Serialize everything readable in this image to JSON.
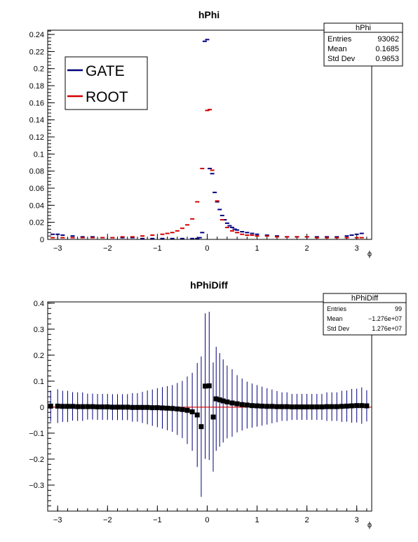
{
  "chart_data": [
    {
      "type": "scatter",
      "title": "hPhi",
      "xlabel": "ϕ",
      "ylabel": "",
      "xlim": [
        -3.2,
        3.3
      ],
      "ylim": [
        0,
        0.245
      ],
      "xticks": [
        -3,
        -2,
        -1,
        0,
        1,
        2,
        3
      ],
      "xtick_labels": [
        "−3",
        "−2",
        "−1",
        "0",
        "1",
        "2",
        "3"
      ],
      "yticks": [
        0,
        0.02,
        0.04,
        0.06,
        0.08,
        0.1,
        0.12,
        0.14,
        0.16,
        0.18,
        0.2,
        0.22,
        0.24
      ],
      "ytick_labels": [
        "0",
        "0.02",
        "0.04",
        "0.06",
        "0.08",
        "0.1",
        "0.12",
        "0.14",
        "0.16",
        "0.18",
        "0.2",
        "0.22",
        "0.24"
      ],
      "legend_placement": "top-left",
      "stats": {
        "title": "hPhi",
        "rows": [
          {
            "label": "Entries",
            "value": "93062"
          },
          {
            "label": "Mean",
            "value": "0.1685"
          },
          {
            "label": "Std Dev",
            "value": "0.9653"
          }
        ]
      },
      "series": [
        {
          "name": "GATE",
          "color": "#00007d",
          "x": [
            -3.1,
            -3.0,
            -2.9,
            -2.7,
            -2.5,
            -2.3,
            -2.1,
            -1.9,
            -1.7,
            -1.5,
            -1.3,
            -1.1,
            -0.9,
            -0.7,
            -0.5,
            -0.3,
            -0.2,
            -0.15,
            -0.1,
            -0.05,
            0.0,
            0.05,
            0.1,
            0.15,
            0.2,
            0.25,
            0.3,
            0.35,
            0.4,
            0.45,
            0.5,
            0.55,
            0.6,
            0.7,
            0.8,
            0.9,
            1.0,
            1.2,
            1.4,
            1.6,
            1.8,
            2.0,
            2.2,
            2.4,
            2.6,
            2.8,
            2.9,
            3.0,
            3.1
          ],
          "y": [
            0.006,
            0.006,
            0.005,
            0.004,
            0.003,
            0.003,
            0.002,
            0.002,
            0.002,
            0.002,
            0.001,
            0.001,
            0.001,
            0.001,
            0.001,
            0.001,
            0.001,
            0.002,
            0.008,
            0.232,
            0.234,
            0.083,
            0.077,
            0.055,
            0.044,
            0.035,
            0.028,
            0.023,
            0.019,
            0.016,
            0.014,
            0.012,
            0.011,
            0.009,
            0.008,
            0.007,
            0.006,
            0.005,
            0.004,
            0.003,
            0.003,
            0.003,
            0.003,
            0.003,
            0.003,
            0.004,
            0.005,
            0.006,
            0.007
          ]
        },
        {
          "name": "ROOT",
          "color": "#d40000",
          "x": [
            -3.1,
            -2.9,
            -2.7,
            -2.5,
            -2.3,
            -2.1,
            -1.9,
            -1.7,
            -1.5,
            -1.3,
            -1.1,
            -0.9,
            -0.8,
            -0.7,
            -0.6,
            -0.5,
            -0.4,
            -0.3,
            -0.2,
            -0.1,
            0.0,
            0.05,
            0.1,
            0.2,
            0.3,
            0.4,
            0.5,
            0.6,
            0.7,
            0.8,
            0.9,
            1.0,
            1.2,
            1.4,
            1.6,
            1.8,
            2.0,
            2.2,
            2.4,
            2.6,
            2.8,
            3.0,
            3.1
          ],
          "y": [
            0.002,
            0.002,
            0.002,
            0.002,
            0.002,
            0.002,
            0.002,
            0.003,
            0.003,
            0.004,
            0.005,
            0.006,
            0.007,
            0.008,
            0.01,
            0.013,
            0.017,
            0.024,
            0.044,
            0.083,
            0.151,
            0.152,
            0.081,
            0.045,
            0.023,
            0.014,
            0.01,
            0.008,
            0.006,
            0.005,
            0.005,
            0.004,
            0.004,
            0.003,
            0.003,
            0.003,
            0.003,
            0.002,
            0.002,
            0.002,
            0.002,
            0.002,
            0.002
          ]
        }
      ]
    },
    {
      "type": "scatter",
      "title": "hPhiDiff",
      "xlabel": "ϕ",
      "ylabel": "",
      "xlim": [
        -3.2,
        3.3
      ],
      "ylim": [
        -0.4,
        0.405
      ],
      "xticks": [
        -3,
        -2,
        -1,
        0,
        1,
        2,
        3
      ],
      "xtick_labels": [
        "−3",
        "−2",
        "−1",
        "0",
        "1",
        "2",
        "3"
      ],
      "yticks": [
        -0.3,
        -0.2,
        -0.1,
        0,
        0.1,
        0.2,
        0.3,
        0.4
      ],
      "ytick_labels": [
        "−0.3",
        "−0.2",
        "−0.1",
        "0",
        "0.1",
        "0.2",
        "0.3",
        "0.4"
      ],
      "stats": {
        "title": "hPhiDiff",
        "rows": [
          {
            "label": "Entries",
            "value": "99"
          },
          {
            "label": "Mean",
            "value": "−1.276e+07"
          },
          {
            "label": "Std Dev",
            "value": "1.276e+07"
          }
        ]
      },
      "reference_line": {
        "y": 0,
        "color": "#d40000"
      },
      "marker_color": "#000000",
      "error_color": "#00007d",
      "points": [
        {
          "x": -3.14,
          "y": 0.004,
          "err": 0.06
        },
        {
          "x": -3.0,
          "y": 0.004,
          "err": 0.065
        },
        {
          "x": -2.9,
          "y": 0.003,
          "err": 0.06
        },
        {
          "x": -2.8,
          "y": 0.003,
          "err": 0.06
        },
        {
          "x": -2.7,
          "y": 0.003,
          "err": 0.055
        },
        {
          "x": -2.6,
          "y": 0.002,
          "err": 0.055
        },
        {
          "x": -2.5,
          "y": 0.002,
          "err": 0.055
        },
        {
          "x": -2.4,
          "y": 0.002,
          "err": 0.05
        },
        {
          "x": -2.3,
          "y": 0.002,
          "err": 0.05
        },
        {
          "x": -2.2,
          "y": 0.001,
          "err": 0.05
        },
        {
          "x": -2.1,
          "y": 0.001,
          "err": 0.05
        },
        {
          "x": -2.0,
          "y": 0.001,
          "err": 0.05
        },
        {
          "x": -1.9,
          "y": 0.0,
          "err": 0.05
        },
        {
          "x": -1.8,
          "y": 0.0,
          "err": 0.05
        },
        {
          "x": -1.7,
          "y": 0.0,
          "err": 0.05
        },
        {
          "x": -1.6,
          "y": 0.0,
          "err": 0.05
        },
        {
          "x": -1.5,
          "y": -0.001,
          "err": 0.055
        },
        {
          "x": -1.4,
          "y": -0.001,
          "err": 0.055
        },
        {
          "x": -1.3,
          "y": -0.001,
          "err": 0.06
        },
        {
          "x": -1.2,
          "y": -0.001,
          "err": 0.065
        },
        {
          "x": -1.1,
          "y": -0.002,
          "err": 0.07
        },
        {
          "x": -1.0,
          "y": -0.002,
          "err": 0.075
        },
        {
          "x": -0.9,
          "y": -0.003,
          "err": 0.08
        },
        {
          "x": -0.8,
          "y": -0.004,
          "err": 0.085
        },
        {
          "x": -0.7,
          "y": -0.005,
          "err": 0.09
        },
        {
          "x": -0.6,
          "y": -0.007,
          "err": 0.1
        },
        {
          "x": -0.5,
          "y": -0.009,
          "err": 0.11
        },
        {
          "x": -0.4,
          "y": -0.012,
          "err": 0.13
        },
        {
          "x": -0.3,
          "y": -0.018,
          "err": 0.15
        },
        {
          "x": -0.2,
          "y": -0.03,
          "err": 0.2
        },
        {
          "x": -0.12,
          "y": -0.075,
          "err": 0.27
        },
        {
          "x": -0.04,
          "y": 0.081,
          "err": 0.28
        },
        {
          "x": 0.04,
          "y": 0.082,
          "err": 0.285
        },
        {
          "x": 0.12,
          "y": -0.038,
          "err": 0.21
        },
        {
          "x": 0.18,
          "y": 0.032,
          "err": 0.2
        },
        {
          "x": 0.25,
          "y": 0.028,
          "err": 0.18
        },
        {
          "x": 0.32,
          "y": 0.024,
          "err": 0.16
        },
        {
          "x": 0.4,
          "y": 0.02,
          "err": 0.14
        },
        {
          "x": 0.5,
          "y": 0.016,
          "err": 0.13
        },
        {
          "x": 0.6,
          "y": 0.013,
          "err": 0.11
        },
        {
          "x": 0.7,
          "y": 0.01,
          "err": 0.1
        },
        {
          "x": 0.8,
          "y": 0.008,
          "err": 0.09
        },
        {
          "x": 0.9,
          "y": 0.006,
          "err": 0.085
        },
        {
          "x": 1.0,
          "y": 0.005,
          "err": 0.08
        },
        {
          "x": 1.1,
          "y": 0.004,
          "err": 0.075
        },
        {
          "x": 1.2,
          "y": 0.003,
          "err": 0.07
        },
        {
          "x": 1.3,
          "y": 0.003,
          "err": 0.065
        },
        {
          "x": 1.4,
          "y": 0.002,
          "err": 0.06
        },
        {
          "x": 1.5,
          "y": 0.002,
          "err": 0.055
        },
        {
          "x": 1.6,
          "y": 0.002,
          "err": 0.055
        },
        {
          "x": 1.7,
          "y": 0.001,
          "err": 0.05
        },
        {
          "x": 1.8,
          "y": 0.001,
          "err": 0.05
        },
        {
          "x": 1.9,
          "y": 0.001,
          "err": 0.05
        },
        {
          "x": 2.0,
          "y": 0.001,
          "err": 0.05
        },
        {
          "x": 2.1,
          "y": 0.001,
          "err": 0.05
        },
        {
          "x": 2.2,
          "y": 0.001,
          "err": 0.05
        },
        {
          "x": 2.3,
          "y": 0.001,
          "err": 0.05
        },
        {
          "x": 2.4,
          "y": 0.002,
          "err": 0.055
        },
        {
          "x": 2.5,
          "y": 0.002,
          "err": 0.055
        },
        {
          "x": 2.6,
          "y": 0.002,
          "err": 0.055
        },
        {
          "x": 2.7,
          "y": 0.003,
          "err": 0.06
        },
        {
          "x": 2.8,
          "y": 0.004,
          "err": 0.06
        },
        {
          "x": 2.9,
          "y": 0.005,
          "err": 0.065
        },
        {
          "x": 3.0,
          "y": 0.006,
          "err": 0.065
        },
        {
          "x": 3.1,
          "y": 0.006,
          "err": 0.07
        },
        {
          "x": 3.2,
          "y": 0.005,
          "err": 0.06
        }
      ]
    }
  ]
}
